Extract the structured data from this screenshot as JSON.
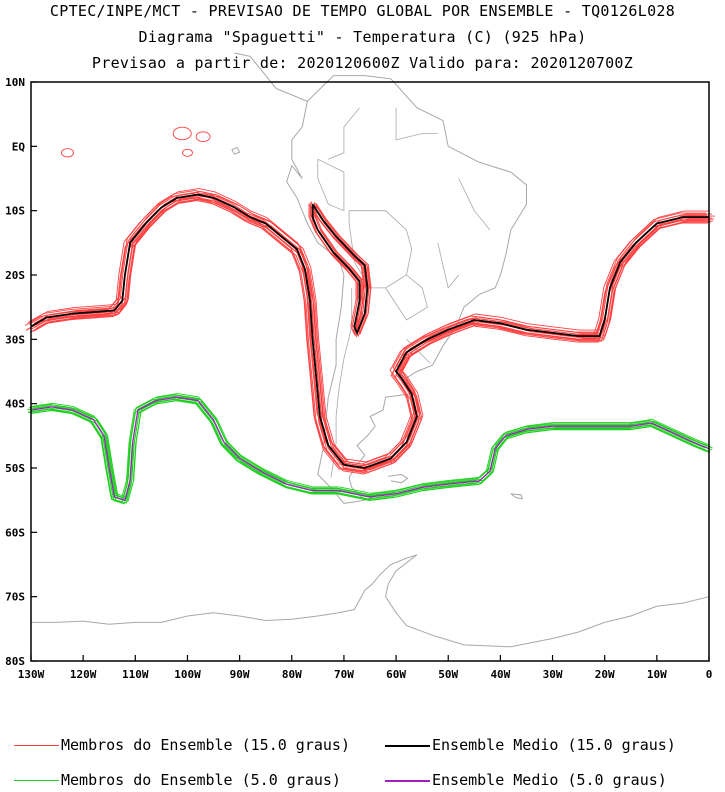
{
  "header": {
    "line1": "CPTEC/INPE/MCT - PREVISAO DE TEMPO GLOBAL POR ENSEMBLE - TQ0126L028",
    "line2": "Diagrama \"Spaguetti\" - Temperatura (C) (925 hPa)",
    "line3": "Previsao a partir de: 2020120600Z  Valido para: 2020120700Z"
  },
  "map": {
    "lon_range": [
      -130,
      0
    ],
    "lat_range": [
      -80,
      10
    ],
    "y_ticks": [
      "10N",
      "EQ",
      "10S",
      "20S",
      "30S",
      "40S",
      "50S",
      "60S",
      "70S",
      "80S"
    ],
    "x_ticks": [
      "130W",
      "120W",
      "110W",
      "100W",
      "90W",
      "80W",
      "70W",
      "60W",
      "50W",
      "40W",
      "30W",
      "20W",
      "10W",
      "0"
    ],
    "colors": {
      "coastline": "#a8a8a8",
      "member_15": "#ff4040",
      "mean_15": "#000000",
      "member_5": "#20d020",
      "mean_5": "#a020c0"
    },
    "contour_15_mean": [
      [
        -130,
        -28
      ],
      [
        -127,
        -26.6
      ],
      [
        -122,
        -26
      ],
      [
        -117,
        -25.7
      ],
      [
        -114,
        -25.5
      ],
      [
        -112.5,
        -24
      ],
      [
        -112,
        -20
      ],
      [
        -111,
        -15
      ],
      [
        -108,
        -12
      ],
      [
        -105,
        -9.5
      ],
      [
        -102,
        -8
      ],
      [
        -98,
        -7.5
      ],
      [
        -95,
        -8
      ],
      [
        -91,
        -9.5
      ],
      [
        -88,
        -11
      ],
      [
        -85,
        -12
      ],
      [
        -82,
        -14
      ],
      [
        -79,
        -16
      ],
      [
        -77.5,
        -19
      ],
      [
        -76.5,
        -24
      ],
      [
        -76,
        -30
      ],
      [
        -75.3,
        -36
      ],
      [
        -74.6,
        -42
      ],
      [
        -73,
        -46.5
      ],
      [
        -70,
        -49.5
      ],
      [
        -66,
        -50
      ],
      [
        -61,
        -48.5
      ],
      [
        -58,
        -46
      ],
      [
        -56,
        -42
      ],
      [
        -57,
        -38.5
      ],
      [
        -59,
        -36
      ],
      [
        -60,
        -35
      ],
      [
        -58,
        -32
      ],
      [
        -54,
        -30
      ],
      [
        -50,
        -28.5
      ],
      [
        -45,
        -27
      ],
      [
        -40,
        -27.5
      ],
      [
        -35,
        -28.5
      ],
      [
        -30,
        -29
      ],
      [
        -25,
        -29.5
      ],
      [
        -21,
        -29.5
      ],
      [
        -20,
        -27
      ],
      [
        -19,
        -22
      ],
      [
        -17,
        -18
      ],
      [
        -14,
        -15
      ],
      [
        -10,
        -12
      ],
      [
        -5,
        -11
      ],
      [
        0,
        -11
      ]
    ],
    "contour_15_isolated": [
      [
        -76,
        -9
      ],
      [
        -74,
        -11.5
      ],
      [
        -71.5,
        -14
      ],
      [
        -68,
        -17
      ],
      [
        -66,
        -18.5
      ],
      [
        -65.5,
        -22
      ],
      [
        -66,
        -26
      ],
      [
        -67.5,
        -29
      ],
      [
        -68,
        -28
      ],
      [
        -67,
        -24
      ],
      [
        -67,
        -21
      ],
      [
        -69,
        -19
      ],
      [
        -72,
        -16.5
      ],
      [
        -75,
        -13
      ],
      [
        -76,
        -11
      ],
      [
        -76,
        -9
      ]
    ],
    "contour_5_mean": [
      [
        -130,
        -41
      ],
      [
        -126,
        -40.5
      ],
      [
        -122,
        -41
      ],
      [
        -118,
        -42.5
      ],
      [
        -116,
        -45
      ],
      [
        -115,
        -50
      ],
      [
        -114,
        -54.5
      ],
      [
        -112,
        -55
      ],
      [
        -111,
        -52
      ],
      [
        -110.5,
        -46
      ],
      [
        -109.5,
        -41
      ],
      [
        -106,
        -39.5
      ],
      [
        -102,
        -39
      ],
      [
        -98,
        -39.5
      ],
      [
        -95,
        -42.5
      ],
      [
        -93,
        -46
      ],
      [
        -90,
        -48.5
      ],
      [
        -86,
        -50.5
      ],
      [
        -81,
        -52.5
      ],
      [
        -76,
        -53.5
      ],
      [
        -71,
        -53.5
      ],
      [
        -65,
        -54.5
      ],
      [
        -60,
        -54
      ],
      [
        -55,
        -53
      ],
      [
        -50,
        -52.5
      ],
      [
        -44,
        -52
      ],
      [
        -42,
        -50.5
      ],
      [
        -41,
        -47
      ],
      [
        -39,
        -45
      ],
      [
        -35,
        -44
      ],
      [
        -30,
        -43.5
      ],
      [
        -25,
        -43.5
      ],
      [
        -20,
        -43.5
      ],
      [
        -15,
        -43.5
      ],
      [
        -11,
        -43
      ],
      [
        -7,
        -44.5
      ],
      [
        -3,
        -46
      ],
      [
        0,
        -47
      ]
    ],
    "legend": [
      {
        "label": "Membros do Ensemble (15.0 graus)",
        "color": "#ff4040",
        "kind": "member"
      },
      {
        "label": "Ensemble Medio (15.0 graus)",
        "color": "#000000",
        "kind": "mean"
      },
      {
        "label": "Membros do Ensemble (5.0 graus)",
        "color": "#20d020",
        "kind": "member"
      },
      {
        "label": "Ensemble Medio (5.0 graus)",
        "color": "#a020c0",
        "kind": "mean"
      }
    ]
  }
}
